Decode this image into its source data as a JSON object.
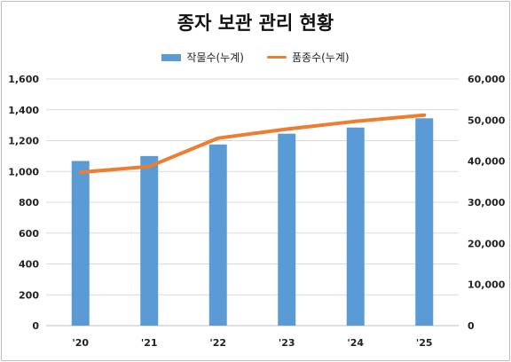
{
  "title": "종자 보관 관리 현황",
  "legend": {
    "bar_label": "작물수(누계)",
    "line_label": "품종수(누계)"
  },
  "colors": {
    "bar": "#5b9bd5",
    "line": "#ed7d31",
    "grid": "#d9d9d9"
  },
  "chart_data": {
    "type": "bar+line",
    "categories": [
      "'20",
      "'21",
      "'22",
      "'23",
      "'24",
      "'25"
    ],
    "series": [
      {
        "name": "작물수(누계)",
        "type": "bar",
        "axis": "left",
        "values": [
          1068,
          1100,
          1175,
          1245,
          1285,
          1345
        ]
      },
      {
        "name": "품종수(누계)",
        "type": "line",
        "axis": "right",
        "values": [
          37300,
          38700,
          45600,
          47800,
          49700,
          51200
        ]
      }
    ],
    "y_left": {
      "min": 0,
      "max": 1600,
      "step": 200,
      "ticks": [
        "0",
        "200",
        "400",
        "600",
        "800",
        "1,000",
        "1,200",
        "1,400",
        "1,600"
      ]
    },
    "y_right": {
      "min": 0,
      "max": 60000,
      "step": 10000,
      "ticks": [
        "0",
        "10,000",
        "20,000",
        "30,000",
        "40,000",
        "50,000",
        "60,000"
      ]
    },
    "grid": true,
    "legend_position": "top"
  }
}
